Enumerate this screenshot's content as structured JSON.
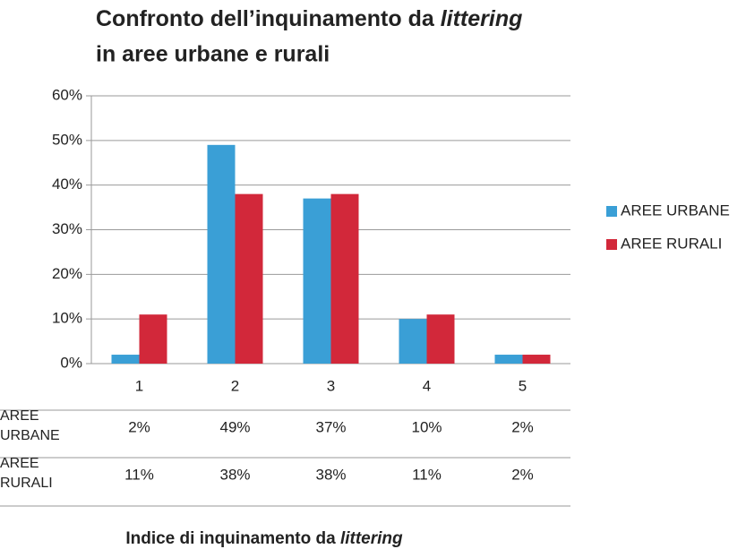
{
  "chart_data": {
    "type": "bar",
    "title": [
      "Confronto dell’inquinamento da ",
      "littering",
      "in aree urbane e rurali"
    ],
    "x_label": [
      "Indice di inquinamento da ",
      "littering"
    ],
    "categories": [
      "1",
      "2",
      "3",
      "4",
      "5"
    ],
    "series": [
      {
        "name": "AREE URBANE",
        "color": "#3a9fd6",
        "values": [
          2,
          49,
          37,
          10,
          2
        ],
        "value_labels": [
          "2%",
          "49%",
          "37%",
          "10%",
          "2%"
        ]
      },
      {
        "name": "AREE RURALI",
        "color": "#d2283a",
        "values": [
          11,
          38,
          38,
          11,
          2
        ],
        "value_labels": [
          "11%",
          "38%",
          "38%",
          "11%",
          "2%"
        ]
      }
    ],
    "ylim": [
      0,
      60
    ],
    "yticks": [
      {
        "value": 0,
        "label": "0%"
      },
      {
        "value": 10,
        "label": "10%"
      },
      {
        "value": 20,
        "label": "20%"
      },
      {
        "value": 30,
        "label": "30%"
      },
      {
        "value": 40,
        "label": "40%"
      },
      {
        "value": 50,
        "label": "50%"
      },
      {
        "value": 60,
        "label": "60%"
      }
    ],
    "grid": true,
    "legend": "right"
  }
}
